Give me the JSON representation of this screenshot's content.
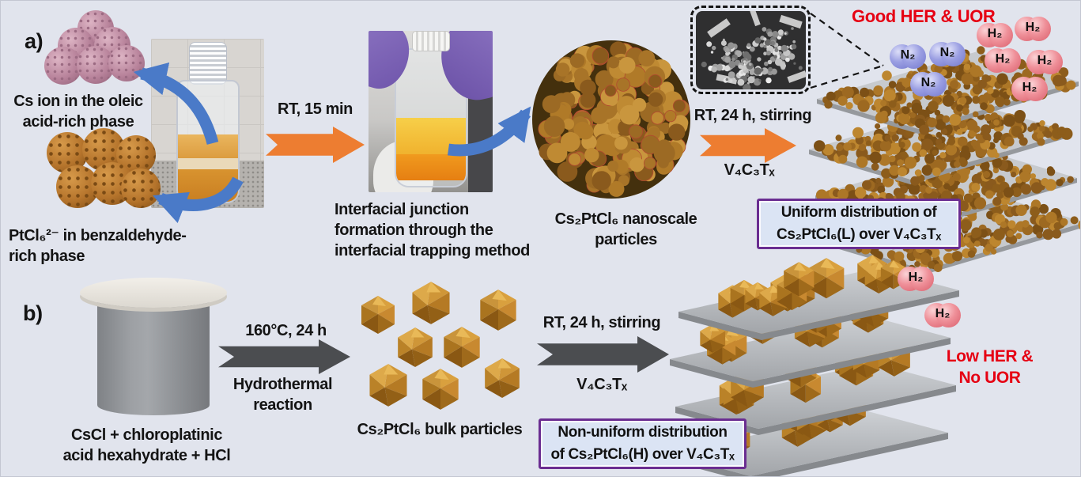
{
  "panel_a": {
    "label": "a)",
    "cs_phase_caption": [
      "Cs ion in the oleic",
      "acid-rich phase"
    ],
    "pt_phase_caption": [
      "PtCl₆²⁻ in benzaldehyde-",
      "rich phase"
    ],
    "step1_arrow_label": "RT, 15 min",
    "interfacial_caption": [
      "Interfacial junction",
      "formation through the",
      "interfacial trapping method"
    ],
    "nanoparticle_caption": [
      "Cs₂PtCl₆ nanoscale",
      "particles"
    ],
    "step2_arrow_label": "RT, 24 h, stirring",
    "step2_arrow_sublabel": "V₄C₃Tₓ",
    "result_label": "Good HER & UOR",
    "result_box": [
      "Uniform distribution of",
      "Cs₂PtCl₆(L) over V₄C₃Tₓ"
    ]
  },
  "panel_b": {
    "label": "b)",
    "precursor_caption": [
      "CsCl + chloroplatinic",
      "acid hexahydrate + HCl"
    ],
    "step1_arrow_label": "160°C, 24 h",
    "step1_arrow_sublabel": [
      "Hydrothermal",
      "reaction"
    ],
    "bulk_caption": "Cs₂PtCl₆ bulk particles",
    "step2_arrow_label": "RT, 24 h, stirring",
    "step2_arrow_sublabel": "V₄C₃Tₓ",
    "result_label": [
      "Low HER &",
      "No UOR"
    ],
    "result_box": [
      "Non-uniform distribution",
      "of Cs₂PtCl₆(H) over V₄C₃Tₓ"
    ]
  },
  "molecules": {
    "h2": "H₂",
    "n2": "N₂"
  },
  "colors": {
    "background": "#e1e4ed",
    "highlight_red": "#e60012",
    "arrow_orange": "#ed7d31",
    "arrow_blue": "#4a7ac8",
    "arrow_dark": "#4b4d50",
    "box_border_purple": "#6a2d91",
    "box_fill_blue": "#dbe4f4",
    "particle_orange": "#b07a28",
    "cs_sphere_pink": "#b8839b"
  }
}
